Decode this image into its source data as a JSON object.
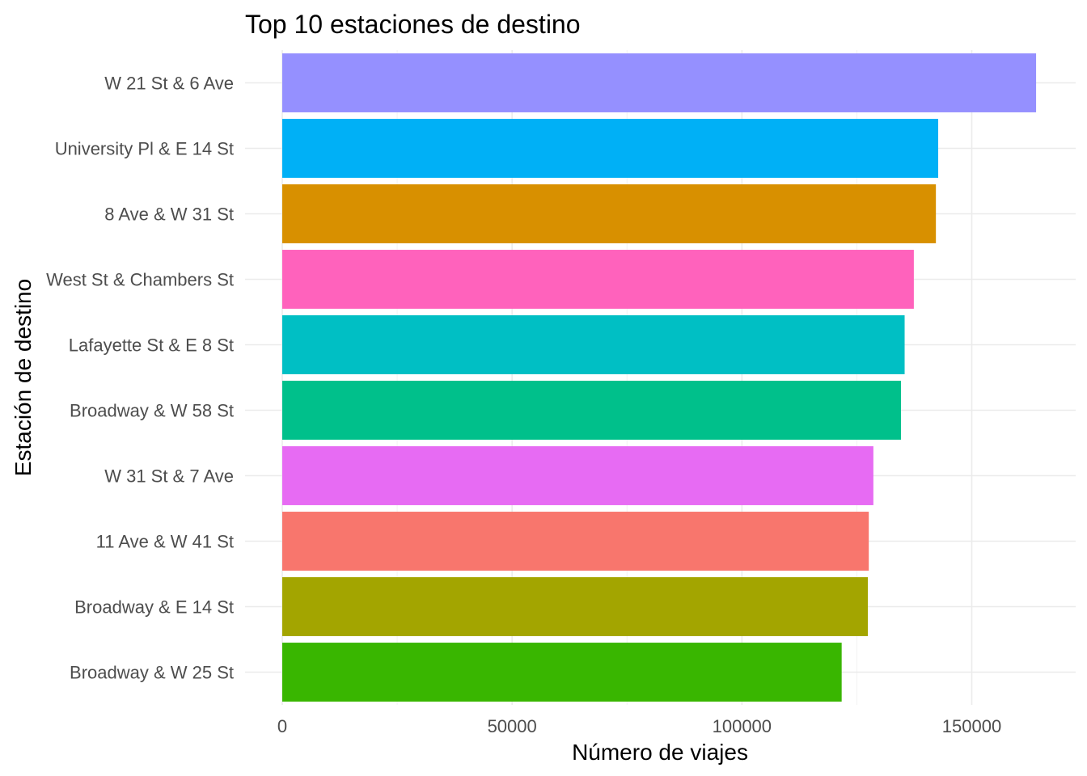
{
  "chart_data": {
    "type": "bar",
    "orientation": "horizontal",
    "title": "Top 10 estaciones de destino",
    "xlabel": "Número de viajes",
    "ylabel": "Estación de destino",
    "xlim": [
      0,
      172000
    ],
    "x_ticks": [
      0,
      50000,
      100000,
      150000
    ],
    "x_tick_labels": [
      "0",
      "50000",
      "100000",
      "150000"
    ],
    "grid": true,
    "legend": "none",
    "categories": [
      "W 21 St & 6 Ave",
      "University Pl & E 14 St",
      "8 Ave & W 31 St",
      "West St & Chambers St",
      "Lafayette St & E 8 St",
      "Broadway & W 58 St",
      "W 31 St & 7 Ave",
      "11 Ave & W 41 St",
      "Broadway & E 14 St",
      "Broadway & W 25 St"
    ],
    "values": [
      164000,
      142700,
      142200,
      137400,
      135400,
      134600,
      128600,
      127600,
      127400,
      121700
    ],
    "colors": [
      "#9590FF",
      "#00B0F6",
      "#D89000",
      "#FF62BC",
      "#00BFC4",
      "#00C08B",
      "#E76BF3",
      "#F8766D",
      "#A3A500",
      "#39B600"
    ]
  }
}
